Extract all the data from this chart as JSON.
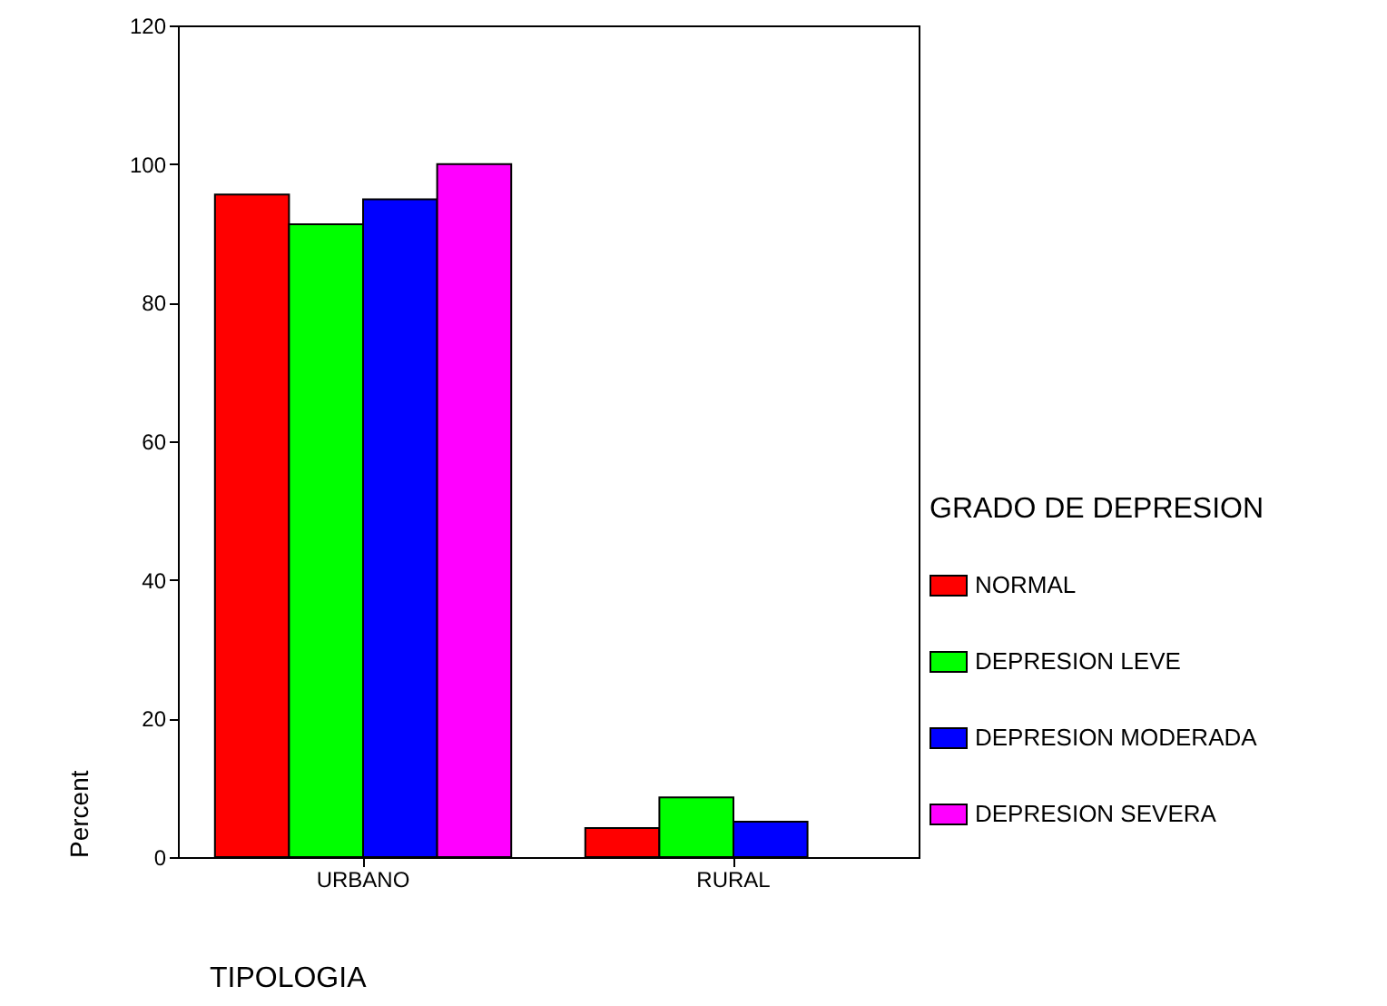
{
  "chart_data": {
    "type": "bar",
    "xlabel": "TIPOLOGIA",
    "ylabel": "Percent",
    "legend_title": "GRADO DE DEPRESION",
    "legend": "right",
    "categories": [
      "URBANO",
      "RURAL"
    ],
    "series": [
      {
        "name": "NORMAL",
        "color": "#ff0000",
        "values": [
          95.6,
          4.2
        ]
      },
      {
        "name": "DEPRESION LEVE",
        "color": "#00ff00",
        "values": [
          91.3,
          8.6
        ]
      },
      {
        "name": "DEPRESION MODERADA",
        "color": "#0000ff",
        "values": [
          94.9,
          5.1
        ]
      },
      {
        "name": "DEPRESION SEVERA",
        "color": "#ff00ff",
        "values": [
          100,
          0
        ]
      }
    ],
    "ylim": [
      0,
      120
    ],
    "yticks": [
      0,
      20,
      40,
      60,
      80,
      100,
      120
    ],
    "grid": false
  }
}
